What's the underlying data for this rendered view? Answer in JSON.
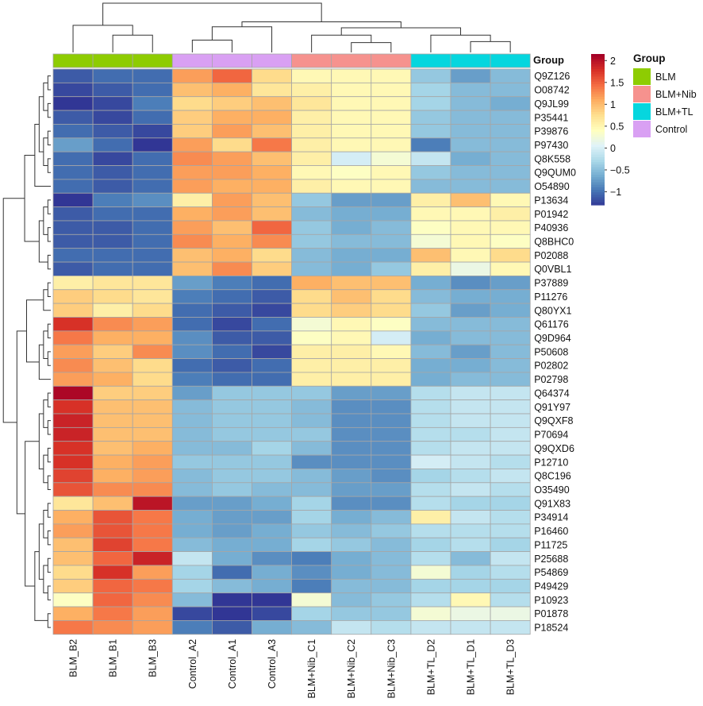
{
  "chart_data": {
    "type": "heatmap",
    "columns": [
      "BLM_B2",
      "BLM_B1",
      "BLM_B3",
      "Control_A2",
      "Control_A1",
      "Control_A3",
      "BLM+Nib_C1",
      "BLM+Nib_C2",
      "BLM+Nib_C3",
      "BLM+TL_D2",
      "BLM+TL_D1",
      "BLM+TL_D3"
    ],
    "column_groups": [
      "BLM",
      "BLM",
      "BLM",
      "Control",
      "Control",
      "Control",
      "BLM+Nib",
      "BLM+Nib",
      "BLM+Nib",
      "BLM+TL",
      "BLM+TL",
      "BLM+TL"
    ],
    "rows": [
      "Q9Z126",
      "O08742",
      "Q9JL99",
      "P35441",
      "P39876",
      "P97430",
      "Q8K558",
      "Q9QUM0",
      "O54890",
      "P13634",
      "P01942",
      "P40936",
      "Q8BHC0",
      "P02088",
      "Q0VBL1",
      "P37889",
      "P11276",
      "Q80YX1",
      "Q61176",
      "Q9D964",
      "P50608",
      "P02802",
      "P02798",
      "Q64374",
      "Q91Y97",
      "Q9QXF8",
      "P70694",
      "Q9QXD6",
      "P12710",
      "Q8C196",
      "O35490",
      "Q91X83",
      "P34914",
      "P16460",
      "P11725",
      "P25688",
      "P54869",
      "P49429",
      "P10923",
      "P01878",
      "P18524"
    ],
    "values": [
      [
        -1.1,
        -1.0,
        -1.0,
        1.2,
        1.5,
        0.8,
        0.5,
        0.5,
        0.5,
        -0.4,
        -0.7,
        -0.5
      ],
      [
        -1.2,
        -1.1,
        -1.0,
        1.0,
        1.1,
        0.7,
        0.6,
        0.5,
        0.5,
        -0.3,
        -0.5,
        -0.5
      ],
      [
        -1.3,
        -1.2,
        -0.9,
        0.8,
        0.9,
        1.0,
        0.7,
        0.5,
        0.5,
        -0.3,
        -0.5,
        -0.6
      ],
      [
        -1.1,
        -1.2,
        -1.0,
        0.9,
        1.1,
        1.1,
        0.6,
        0.5,
        0.5,
        -0.4,
        -0.5,
        -0.5
      ],
      [
        -1.0,
        -1.1,
        -1.2,
        0.9,
        1.2,
        1.0,
        0.6,
        0.5,
        0.5,
        -0.4,
        -0.5,
        -0.5
      ],
      [
        -0.7,
        -1.0,
        -1.3,
        1.2,
        0.8,
        1.4,
        0.6,
        0.5,
        0.5,
        -0.9,
        -0.5,
        -0.5
      ],
      [
        -1.0,
        -1.2,
        -1.0,
        1.3,
        1.2,
        1.0,
        0.6,
        0.0,
        0.3,
        -0.1,
        -0.6,
        -0.5
      ],
      [
        -1.0,
        -1.1,
        -1.0,
        1.2,
        1.2,
        1.1,
        0.5,
        0.4,
        0.5,
        -0.4,
        -0.5,
        -0.5
      ],
      [
        -1.0,
        -1.1,
        -1.0,
        1.2,
        1.1,
        1.1,
        0.6,
        0.5,
        0.5,
        -0.5,
        -0.5,
        -0.5
      ],
      [
        -1.3,
        -0.9,
        -0.8,
        0.6,
        1.2,
        1.0,
        -0.4,
        -0.7,
        -0.7,
        0.6,
        1.0,
        0.5
      ],
      [
        -1.1,
        -1.0,
        -1.0,
        1.1,
        1.2,
        1.0,
        -0.5,
        -0.6,
        -0.6,
        0.5,
        0.5,
        0.6
      ],
      [
        -1.1,
        -1.1,
        -1.0,
        1.2,
        1.0,
        1.5,
        -0.4,
        -0.6,
        -0.5,
        0.4,
        0.5,
        0.5
      ],
      [
        -1.1,
        -1.1,
        -1.0,
        1.3,
        1.1,
        1.3,
        -0.4,
        -0.5,
        -0.5,
        0.3,
        0.5,
        0.4
      ],
      [
        -1.0,
        -1.0,
        -1.0,
        1.0,
        1.1,
        0.8,
        -0.5,
        -0.6,
        -0.6,
        1.0,
        0.5,
        0.8
      ],
      [
        -1.1,
        -1.0,
        -1.0,
        1.0,
        1.3,
        0.9,
        -0.5,
        -0.6,
        -0.4,
        0.6,
        0.2,
        0.5
      ],
      [
        0.6,
        0.7,
        0.7,
        -0.7,
        -0.9,
        -1.0,
        1.1,
        1.0,
        1.0,
        -0.6,
        -0.8,
        -0.7
      ],
      [
        0.9,
        0.8,
        0.7,
        -0.9,
        -1.0,
        -1.1,
        0.8,
        1.0,
        0.8,
        -0.5,
        -0.6,
        -0.6
      ],
      [
        0.9,
        0.6,
        0.8,
        -1.0,
        -1.1,
        -1.2,
        0.8,
        0.9,
        0.8,
        -0.4,
        -0.7,
        -0.6
      ],
      [
        1.8,
        1.3,
        1.2,
        -1.0,
        -1.2,
        -1.0,
        0.3,
        0.5,
        0.4,
        -0.5,
        -0.5,
        -0.5
      ],
      [
        1.4,
        1.1,
        1.1,
        -0.8,
        -1.1,
        -1.1,
        0.4,
        0.5,
        0.0,
        -0.6,
        -0.5,
        -0.5
      ],
      [
        1.2,
        0.9,
        1.3,
        -0.8,
        -1.0,
        -1.2,
        0.6,
        0.6,
        0.5,
        -0.5,
        -0.7,
        -0.5
      ],
      [
        1.3,
        1.0,
        0.8,
        -1.0,
        -1.1,
        -1.0,
        0.6,
        0.6,
        0.6,
        -0.6,
        -0.6,
        -0.5
      ],
      [
        1.2,
        1.1,
        0.8,
        -0.9,
        -1.0,
        -1.0,
        0.6,
        0.6,
        0.6,
        -0.6,
        -0.5,
        -0.5
      ],
      [
        2.1,
        0.9,
        0.9,
        -0.7,
        -0.4,
        -0.4,
        -0.4,
        -0.7,
        -0.7,
        -0.2,
        -0.1,
        -0.1
      ],
      [
        1.8,
        1.0,
        1.0,
        -0.5,
        -0.4,
        -0.4,
        -0.5,
        -0.8,
        -0.8,
        -0.2,
        -0.1,
        -0.1
      ],
      [
        1.9,
        1.0,
        1.0,
        -0.5,
        -0.4,
        -0.4,
        -0.5,
        -0.8,
        -0.8,
        -0.2,
        -0.1,
        -0.1
      ],
      [
        1.9,
        1.0,
        1.0,
        -0.5,
        -0.4,
        -0.4,
        -0.4,
        -0.8,
        -0.8,
        -0.2,
        -0.2,
        -0.1
      ],
      [
        1.8,
        1.0,
        1.1,
        -0.5,
        -0.5,
        -0.3,
        -0.5,
        -0.8,
        -0.8,
        -0.2,
        -0.1,
        -0.1
      ],
      [
        1.8,
        1.1,
        1.2,
        -0.4,
        -0.4,
        -0.4,
        -0.8,
        -0.8,
        -0.8,
        0.0,
        -0.1,
        -0.2
      ],
      [
        1.7,
        1.1,
        1.2,
        -0.5,
        -0.4,
        -0.4,
        -0.5,
        -0.7,
        -0.8,
        -0.3,
        -0.2,
        -0.1
      ],
      [
        1.6,
        1.3,
        1.3,
        -0.5,
        -0.4,
        -0.5,
        -0.5,
        -0.7,
        -0.7,
        -0.2,
        -0.1,
        -0.2
      ],
      [
        0.7,
        1.0,
        2.0,
        -0.7,
        -0.7,
        -0.6,
        -0.3,
        -0.8,
        -0.8,
        -0.2,
        -0.3,
        -0.3
      ],
      [
        1.1,
        1.6,
        1.4,
        -0.6,
        -0.7,
        -0.7,
        -0.3,
        -0.6,
        -0.5,
        0.6,
        -0.1,
        -0.2
      ],
      [
        1.2,
        1.6,
        1.4,
        -0.6,
        -0.7,
        -0.6,
        -0.4,
        -0.5,
        -0.4,
        -0.2,
        -0.2,
        -0.2
      ],
      [
        1.0,
        1.7,
        1.4,
        -0.5,
        -0.6,
        -0.6,
        -0.3,
        -0.4,
        -0.5,
        -0.3,
        -0.2,
        -0.3
      ],
      [
        1.0,
        1.5,
        1.9,
        -0.1,
        -0.6,
        -0.8,
        -0.9,
        -0.6,
        -0.5,
        -0.2,
        -0.5,
        -0.1
      ],
      [
        0.8,
        1.8,
        1.2,
        -0.3,
        -1.0,
        -0.6,
        -0.8,
        -0.6,
        -0.5,
        0.3,
        -0.3,
        -0.2
      ],
      [
        0.9,
        1.5,
        1.4,
        -0.3,
        -0.5,
        -0.6,
        -0.9,
        -0.5,
        -0.5,
        -0.3,
        -0.3,
        -0.3
      ],
      [
        0.4,
        1.5,
        1.3,
        -0.5,
        -1.3,
        -1.3,
        0.3,
        -0.5,
        -0.4,
        -0.2,
        0.5,
        -0.2
      ],
      [
        1.1,
        1.4,
        1.2,
        -1.2,
        -1.3,
        -1.2,
        -0.3,
        -0.4,
        -0.4,
        0.3,
        0.2,
        0.2
      ],
      [
        1.4,
        1.3,
        1.2,
        -0.9,
        -1.1,
        -0.6,
        -0.5,
        -0.1,
        -0.2,
        -0.1,
        -0.1,
        -0.1
      ]
    ],
    "col_dendrogram": {
      "leaf_order": [
        "BLM_B2",
        "BLM_B1",
        "BLM_B3",
        "Control_A2",
        "Control_A1",
        "Control_A3",
        "BLM+Nib_C1",
        "BLM+Nib_C2",
        "BLM+Nib_C3",
        "BLM+TL_D2",
        "BLM+TL_D1",
        "BLM+TL_D3"
      ],
      "merges": [
        [
          1,
          2,
          3.5
        ],
        [
          0,
          12,
          5.5
        ],
        [
          3,
          4,
          2.5
        ],
        [
          14,
          5,
          5.2
        ],
        [
          7,
          8,
          2.0
        ],
        [
          6,
          16,
          3.5
        ],
        [
          10,
          11,
          2.2
        ],
        [
          9,
          18,
          3.5
        ],
        [
          17,
          19,
          5.0
        ],
        [
          15,
          20,
          6.2
        ],
        [
          13,
          21,
          10.0
        ]
      ]
    },
    "color_scale": {
      "colors": [
        "#313695",
        "#4575b4",
        "#74add1",
        "#abd9e9",
        "#e0f3f8",
        "#ffffbf",
        "#fee090",
        "#fdae61",
        "#f46d43",
        "#d73027",
        "#a50026"
      ],
      "min": -1.3,
      "max": 2.15,
      "ticks": [
        2,
        1.5,
        1,
        0.5,
        0,
        -0.5,
        -1
      ],
      "tick_labels": [
        "2",
        "1.5",
        "1",
        "0.5",
        "0",
        "−0.5",
        "−1"
      ]
    },
    "annotation_title": "Group",
    "legend": {
      "title": "Group",
      "entries": [
        {
          "label": "BLM",
          "color": "#8ecc02"
        },
        {
          "label": "BLM+Nib",
          "color": "#f6928e"
        },
        {
          "label": "BLM+TL",
          "color": "#06d6de"
        },
        {
          "label": "Control",
          "color": "#d9a0f3"
        }
      ]
    }
  }
}
